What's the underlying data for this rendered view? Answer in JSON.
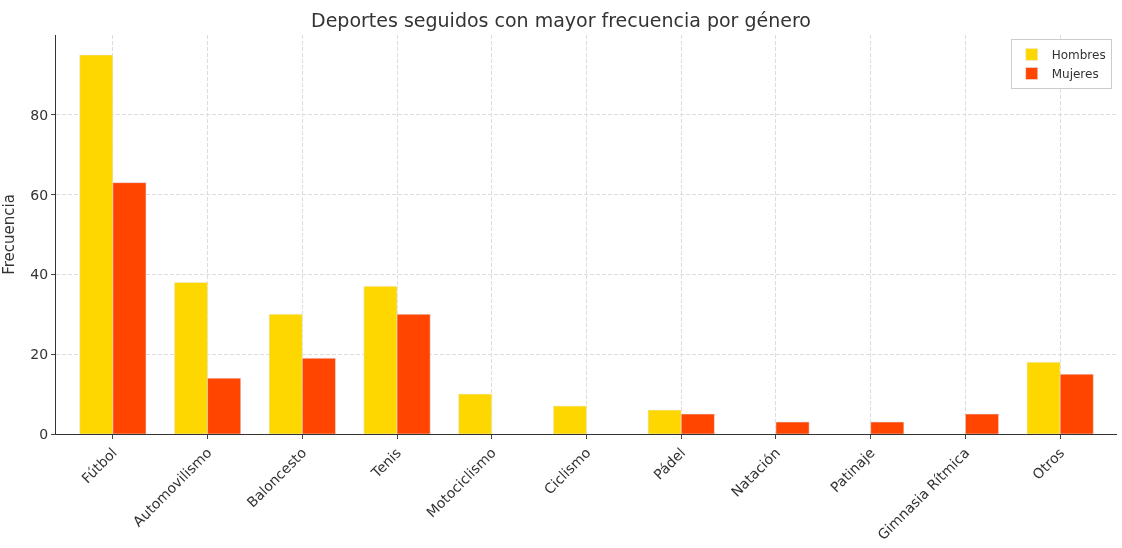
{
  "chart_data": {
    "type": "bar",
    "title": "Deportes seguidos con mayor frecuencia por género",
    "ylabel": "Frecuencia",
    "categories": [
      "Fútbol",
      "Automovilismo",
      "Baloncesto",
      "Tenis",
      "Motociclismo",
      "Ciclismo",
      "Pádel",
      "Natación",
      "Patinaje",
      "Gimnasia Rítmica",
      "Otros"
    ],
    "series": [
      {
        "name": "Hombres",
        "color": "#ffd700",
        "values": [
          95,
          38,
          30,
          37,
          10,
          7,
          6,
          null,
          null,
          null,
          18
        ]
      },
      {
        "name": "Mujeres",
        "color": "#ff4500",
        "values": [
          63,
          14,
          19,
          30,
          null,
          null,
          5,
          3,
          3,
          5,
          15
        ]
      }
    ],
    "ylim": [
      0,
      100
    ],
    "yticks": [
      0,
      20,
      40,
      60,
      80
    ],
    "grid": true,
    "legend": "top right"
  }
}
